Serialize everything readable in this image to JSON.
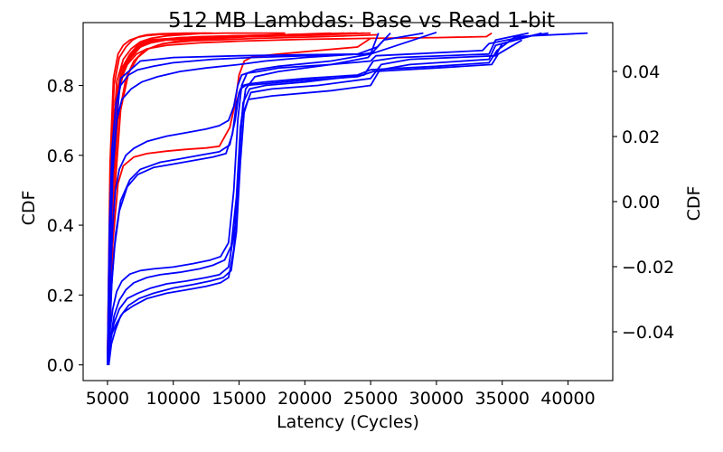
{
  "chart_data": {
    "type": "line",
    "title": "512 MB Lambdas: Base vs Read 1-bit",
    "xlabel": "Latency (Cycles)",
    "ylabel": "CDF",
    "ylabel_right": "CDF",
    "xlim": [
      3150,
      43400
    ],
    "ylim": [
      -0.045,
      0.98
    ],
    "ylim_right": [
      -0.055,
      0.055
    ],
    "x_ticks": [
      5000,
      10000,
      15000,
      20000,
      25000,
      30000,
      35000,
      40000
    ],
    "x_tick_labels": [
      "5000",
      "10000",
      "15000",
      "20000",
      "25000",
      "30000",
      "35000",
      "40000"
    ],
    "y_ticks": [
      0.0,
      0.2,
      0.4,
      0.6,
      0.8
    ],
    "y_tick_labels": [
      "0.0",
      "0.2",
      "0.4",
      "0.6",
      "0.8"
    ],
    "y_right_ticks": [
      -0.04,
      -0.02,
      0.0,
      0.02,
      0.04
    ],
    "y_right_tick_labels": [
      "−0.04",
      "−0.02",
      "0.00",
      "0.02",
      "0.04"
    ],
    "grid": false,
    "colors": {
      "red_group": "#ff0000",
      "blue_group": "#0000ff"
    },
    "series": [
      {
        "color": "red",
        "x": [
          5000,
          5200,
          5500,
          6000,
          6500,
          7000,
          7500,
          8000,
          12000,
          18000,
          25000
        ],
        "y": [
          0.0,
          0.45,
          0.72,
          0.82,
          0.87,
          0.9,
          0.92,
          0.93,
          0.94,
          0.945,
          0.95
        ]
      },
      {
        "color": "red",
        "x": [
          5050,
          5300,
          5700,
          6200,
          6800,
          7500,
          8500,
          10000,
          15000,
          24000
        ],
        "y": [
          0.0,
          0.5,
          0.75,
          0.84,
          0.88,
          0.91,
          0.925,
          0.935,
          0.94,
          0.95
        ]
      },
      {
        "color": "red",
        "x": [
          5100,
          5400,
          5800,
          6300,
          7000,
          7800,
          9000,
          13000,
          20000,
          23500
        ],
        "y": [
          0.0,
          0.55,
          0.78,
          0.86,
          0.9,
          0.92,
          0.93,
          0.94,
          0.945,
          0.95
        ]
      },
      {
        "color": "red",
        "x": [
          5000,
          5250,
          5600,
          6100,
          6700,
          7300,
          8200,
          11000,
          16000,
          22000
        ],
        "y": [
          0.0,
          0.48,
          0.76,
          0.85,
          0.89,
          0.915,
          0.928,
          0.936,
          0.942,
          0.95
        ]
      },
      {
        "color": "red",
        "x": [
          5050,
          5350,
          5750,
          6250,
          6900,
          7700,
          9500,
          14000,
          21000,
          24500
        ],
        "y": [
          0.0,
          0.52,
          0.77,
          0.855,
          0.895,
          0.918,
          0.93,
          0.938,
          0.944,
          0.95
        ]
      },
      {
        "color": "red",
        "x": [
          5000,
          5300,
          5650,
          6150,
          6600,
          7200,
          7900,
          9000,
          12000,
          17000,
          23000
        ],
        "y": [
          0.0,
          0.46,
          0.74,
          0.83,
          0.875,
          0.905,
          0.922,
          0.932,
          0.938,
          0.943,
          0.95
        ]
      },
      {
        "color": "red",
        "x": [
          5100,
          5450,
          5900,
          6450,
          7100,
          7900,
          8800,
          10500,
          14500,
          19500,
          24000
        ],
        "y": [
          0.0,
          0.54,
          0.79,
          0.865,
          0.9,
          0.92,
          0.93,
          0.937,
          0.942,
          0.946,
          0.95
        ]
      },
      {
        "color": "red",
        "x": [
          5000,
          5200,
          5500,
          5900,
          6400,
          6900,
          7400,
          8000,
          9000,
          11000,
          13000
        ],
        "y": [
          0.0,
          0.5,
          0.8,
          0.88,
          0.91,
          0.93,
          0.94,
          0.945,
          0.948,
          0.95,
          0.95
        ]
      },
      {
        "color": "red",
        "x": [
          5050,
          5300,
          5700,
          6200,
          6800,
          7500,
          8300,
          9500,
          12500
        ],
        "y": [
          0.0,
          0.56,
          0.81,
          0.875,
          0.905,
          0.925,
          0.935,
          0.942,
          0.95
        ]
      },
      {
        "color": "red",
        "x": [
          5000,
          5300,
          5800,
          6400,
          7000,
          7800,
          8800,
          10000,
          12000,
          15000,
          18000
        ],
        "y": [
          0.0,
          0.42,
          0.7,
          0.82,
          0.87,
          0.9,
          0.915,
          0.925,
          0.932,
          0.938,
          0.945
        ]
      },
      {
        "color": "red",
        "x": [
          5100,
          5500,
          6000,
          6600,
          7300,
          8100,
          9200,
          11500,
          16500,
          21500,
          25500
        ],
        "y": [
          0.0,
          0.47,
          0.73,
          0.835,
          0.88,
          0.905,
          0.92,
          0.928,
          0.935,
          0.94,
          0.945
        ]
      },
      {
        "color": "red",
        "x": [
          5000,
          5200,
          5450,
          5800,
          6200,
          6700,
          7300,
          8000,
          9000,
          11000,
          14000,
          18500
        ],
        "y": [
          0.0,
          0.58,
          0.82,
          0.89,
          0.915,
          0.93,
          0.938,
          0.943,
          0.946,
          0.948,
          0.95,
          0.95
        ]
      },
      {
        "color": "red",
        "x": [
          5000,
          5250,
          5550,
          5950,
          6500,
          7200,
          8000,
          9500,
          12000,
          15000,
          20000,
          25000,
          30000,
          33800,
          34200
        ],
        "y": [
          0.0,
          0.45,
          0.71,
          0.81,
          0.86,
          0.89,
          0.905,
          0.915,
          0.922,
          0.927,
          0.932,
          0.935,
          0.937,
          0.94,
          0.95
        ]
      },
      {
        "color": "red",
        "x": [
          5100,
          5400,
          5800,
          6200,
          7000,
          8000,
          9500,
          11000,
          12500,
          13500,
          14300,
          14700,
          15000,
          15400,
          16000,
          18000,
          21000,
          24000,
          25000
        ],
        "y": [
          0.0,
          0.35,
          0.52,
          0.57,
          0.595,
          0.605,
          0.612,
          0.617,
          0.621,
          0.626,
          0.68,
          0.75,
          0.83,
          0.87,
          0.882,
          0.89,
          0.9,
          0.91,
          0.935
        ]
      },
      {
        "color": "blue",
        "x": [
          5050,
          5150,
          5250,
          5400,
          5600,
          5900,
          6400,
          7000,
          8000,
          9500,
          11000,
          12500,
          13500,
          14200,
          14600,
          14900,
          15200,
          15600,
          16500,
          18000,
          22000,
          25000,
          25400,
          28000,
          33500,
          34000,
          36000,
          38500
        ],
        "y": [
          0.0,
          0.15,
          0.28,
          0.4,
          0.5,
          0.56,
          0.6,
          0.62,
          0.64,
          0.655,
          0.665,
          0.675,
          0.685,
          0.7,
          0.74,
          0.8,
          0.83,
          0.835,
          0.84,
          0.85,
          0.86,
          0.87,
          0.885,
          0.89,
          0.9,
          0.92,
          0.935,
          0.95
        ]
      },
      {
        "color": "blue",
        "x": [
          5100,
          5200,
          5350,
          5600,
          6000,
          6700,
          7500,
          9000,
          10500,
          12000,
          13500,
          14300,
          14700,
          15000,
          15300,
          15800,
          17000,
          20000,
          24000,
          25000,
          30000,
          34000,
          34600,
          36000,
          41500
        ],
        "y": [
          0.0,
          0.12,
          0.25,
          0.37,
          0.47,
          0.53,
          0.56,
          0.58,
          0.59,
          0.6,
          0.61,
          0.63,
          0.7,
          0.78,
          0.8,
          0.805,
          0.81,
          0.82,
          0.83,
          0.845,
          0.855,
          0.865,
          0.9,
          0.94,
          0.95
        ]
      },
      {
        "color": "blue",
        "x": [
          5000,
          5150,
          5300,
          5550,
          5900,
          6500,
          7300,
          8500,
          10000,
          11500,
          13000,
          14000,
          14500,
          14800,
          15100,
          15500,
          17000,
          20000,
          24000,
          25200,
          30000,
          34200,
          34700,
          36500
        ],
        "y": [
          0.0,
          0.1,
          0.22,
          0.34,
          0.44,
          0.51,
          0.545,
          0.565,
          0.575,
          0.585,
          0.595,
          0.605,
          0.66,
          0.75,
          0.79,
          0.8,
          0.805,
          0.815,
          0.825,
          0.84,
          0.85,
          0.86,
          0.89,
          0.93
        ]
      },
      {
        "color": "blue",
        "x": [
          5000,
          5200,
          5400,
          5700,
          6100,
          6700,
          7500,
          8500,
          10000,
          11500,
          12800,
          13600,
          14200,
          14600,
          14900,
          15200,
          15600,
          16300,
          18000,
          22000,
          25000,
          25600
        ],
        "y": [
          0.0,
          0.1,
          0.16,
          0.21,
          0.24,
          0.26,
          0.27,
          0.275,
          0.28,
          0.29,
          0.3,
          0.31,
          0.35,
          0.5,
          0.7,
          0.8,
          0.835,
          0.845,
          0.855,
          0.87,
          0.89,
          0.95
        ]
      },
      {
        "color": "blue",
        "x": [
          5050,
          5250,
          5500,
          5900,
          6400,
          7000,
          8000,
          9000,
          10500,
          12000,
          13000,
          13900,
          14400,
          14800,
          15100,
          15500,
          16200,
          18000,
          22000,
          24800,
          26000,
          29000
        ],
        "y": [
          0.0,
          0.08,
          0.14,
          0.185,
          0.215,
          0.235,
          0.25,
          0.258,
          0.265,
          0.275,
          0.285,
          0.3,
          0.34,
          0.48,
          0.68,
          0.79,
          0.825,
          0.84,
          0.86,
          0.88,
          0.93,
          0.95
        ]
      },
      {
        "color": "blue",
        "x": [
          5000,
          5200,
          5500,
          5900,
          6500,
          7300,
          8300,
          9500,
          11000,
          12500,
          13500,
          14200,
          14700,
          15000,
          15300,
          15800,
          17000,
          20000,
          24500,
          25200,
          27000,
          34000,
          34500,
          37000
        ],
        "y": [
          0.0,
          0.07,
          0.12,
          0.16,
          0.19,
          0.205,
          0.22,
          0.232,
          0.24,
          0.25,
          0.258,
          0.28,
          0.4,
          0.6,
          0.75,
          0.79,
          0.8,
          0.81,
          0.83,
          0.87,
          0.88,
          0.89,
          0.93,
          0.95
        ]
      },
      {
        "color": "blue",
        "x": [
          5100,
          5300,
          5600,
          6000,
          6600,
          7400,
          8500,
          10000,
          11500,
          12800,
          13800,
          14400,
          14800,
          15100,
          15400,
          15900,
          17500,
          21000,
          25000,
          25800,
          28000,
          34500,
          35000,
          38000
        ],
        "y": [
          0.0,
          0.06,
          0.1,
          0.14,
          0.17,
          0.19,
          0.205,
          0.22,
          0.23,
          0.24,
          0.25,
          0.27,
          0.38,
          0.58,
          0.73,
          0.78,
          0.79,
          0.8,
          0.82,
          0.86,
          0.875,
          0.885,
          0.92,
          0.95
        ]
      },
      {
        "color": "blue",
        "x": [
          5000,
          5150,
          5350,
          5700,
          6200,
          7000,
          8000,
          9500,
          11000,
          12500,
          13600,
          14200,
          14600,
          14900,
          15200,
          15700,
          17500,
          22000,
          25000,
          25700,
          28000,
          34000,
          34500,
          37500
        ],
        "y": [
          0.0,
          0.05,
          0.09,
          0.12,
          0.15,
          0.17,
          0.19,
          0.205,
          0.215,
          0.225,
          0.235,
          0.25,
          0.33,
          0.52,
          0.7,
          0.76,
          0.77,
          0.785,
          0.8,
          0.845,
          0.86,
          0.875,
          0.915,
          0.945
        ]
      },
      {
        "color": "blue",
        "x": [
          5050,
          5200,
          5400,
          5700,
          6100,
          6800,
          7600,
          8800,
          10500,
          12500,
          15000,
          17000,
          20000,
          24000,
          25500,
          26500
        ],
        "y": [
          0.0,
          0.3,
          0.55,
          0.7,
          0.76,
          0.79,
          0.81,
          0.825,
          0.84,
          0.85,
          0.86,
          0.87,
          0.88,
          0.89,
          0.91,
          0.95
        ]
      },
      {
        "color": "blue",
        "x": [
          5000,
          5150,
          5350,
          5650,
          6000,
          6600,
          7300,
          8500,
          10000,
          13000,
          16000,
          20000,
          24500,
          25300
        ],
        "y": [
          0.0,
          0.4,
          0.62,
          0.75,
          0.8,
          0.83,
          0.845,
          0.855,
          0.865,
          0.875,
          0.88,
          0.885,
          0.89,
          0.895
        ]
      },
      {
        "color": "blue",
        "x": [
          5000,
          5300,
          6000,
          7500,
          10000,
          15000,
          20000,
          25000,
          30000
        ],
        "y": [
          0.0,
          0.55,
          0.82,
          0.87,
          0.88,
          0.885,
          0.888,
          0.89,
          0.952
        ]
      }
    ]
  }
}
